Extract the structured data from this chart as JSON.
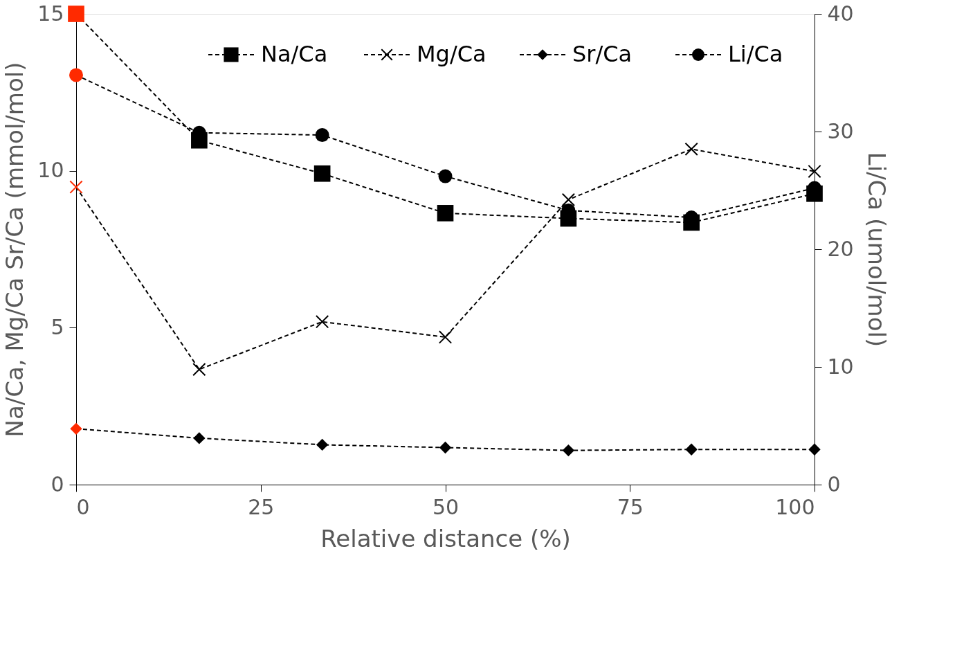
{
  "chart_data": {
    "type": "line",
    "xlabel": "Relative distance (%)",
    "ylabel": "Na/Ca, Mg/Ca  Sr/Ca (mmol/mol)",
    "y2label": "Li/Ca (umol/mol)",
    "x": [
      0,
      16.67,
      33.33,
      50,
      66.67,
      83.33,
      100
    ],
    "xlim": [
      0,
      100
    ],
    "xticks": [
      0,
      25,
      50,
      75,
      100
    ],
    "ylim": [
      0,
      15
    ],
    "yticks": [
      0,
      5,
      10,
      15
    ],
    "y2lim": [
      0,
      40
    ],
    "y2ticks": [
      0,
      10,
      20,
      30,
      40
    ],
    "grid": false,
    "legend": "top",
    "line_style": "dashed",
    "series": [
      {
        "name": "Na/Ca",
        "color": "#000000",
        "marker": "square",
        "colors": [
          "#ff2a00",
          "#000000",
          "#000000",
          "#000000",
          "#000000",
          "#000000",
          "#000000"
        ],
        "values": [
          15.0,
          10.97,
          9.91,
          8.65,
          8.48,
          8.35,
          9.27
        ]
      },
      {
        "name": "Mg/Ca",
        "color": "#000000",
        "marker": "cross",
        "colors": [
          "#ff2a00",
          "#000000",
          "#000000",
          "#000000",
          "#000000",
          "#000000",
          "#000000"
        ],
        "values": [
          9.48,
          3.67,
          5.19,
          4.7,
          9.08,
          10.69,
          9.98
        ]
      },
      {
        "name": "Sr/Ca",
        "color": "#000000",
        "marker": "diamond",
        "colors": [
          "#ff2a00",
          "#000000",
          "#000000",
          "#000000",
          "#000000",
          "#000000",
          "#000000"
        ],
        "values": [
          1.78,
          1.48,
          1.27,
          1.18,
          1.09,
          1.12,
          1.12
        ]
      },
      {
        "name": "Li/Ca",
        "color": "#000000",
        "marker": "circle",
        "axis": "y2",
        "colors": [
          "#ff2a00",
          "#000000",
          "#000000",
          "#000000",
          "#000000",
          "#000000",
          "#000000"
        ],
        "values": [
          34.8,
          29.9,
          29.7,
          26.2,
          23.3,
          22.7,
          25.2
        ]
      }
    ]
  }
}
